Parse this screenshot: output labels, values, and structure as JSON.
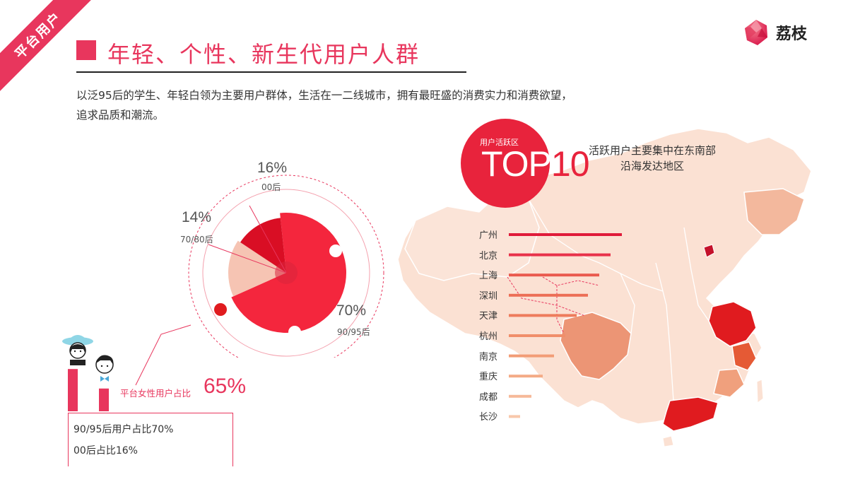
{
  "corner_tag": "平台用户",
  "logo": {
    "text": "荔枝"
  },
  "title": "年轻、个性、新生代用户人群",
  "subtitle": {
    "line1": "以泛95后的学生、年轻白领为主要用户群体，生活在一二线城市，拥有最旺盛的消费实力和消费欲望，",
    "line2": "追求品质和潮流。"
  },
  "colors": {
    "accent": "#e8365d",
    "red": "#e8233c",
    "light": "#fbe1d3",
    "mid": "#f0a07d",
    "dark": "#e33d2b"
  },
  "chart_data": [
    {
      "type": "pie",
      "categories": [
        "90/95后",
        "00后",
        "70/80后"
      ],
      "values": [
        70,
        16,
        14
      ],
      "labels": [
        "70%",
        "16%",
        "14%"
      ]
    },
    {
      "type": "bar",
      "title": "TOP10",
      "title_caption": "用户活跃区",
      "categories": [
        "广州",
        "北京",
        "上海",
        "深圳",
        "天津",
        "杭州",
        "南京",
        "重庆",
        "成都",
        "长沙"
      ],
      "values": [
        10,
        9,
        8,
        7,
        6,
        5,
        4,
        3,
        2,
        1
      ],
      "note": [
        "活跃用户主要集中在东南部",
        "沿海发达地区"
      ]
    }
  ],
  "pie_labels": {
    "p70": {
      "value": "70%",
      "name": "90/95后"
    },
    "p16": {
      "value": "16%",
      "name": "00后"
    },
    "p14": {
      "value": "14%",
      "name": "70/80后"
    }
  },
  "gender": {
    "text": "平台女性用户占比",
    "value": "65%",
    "female": 65
  },
  "summary": {
    "line1": "90/95后用户占比70%",
    "line2": "00后占比16%"
  }
}
